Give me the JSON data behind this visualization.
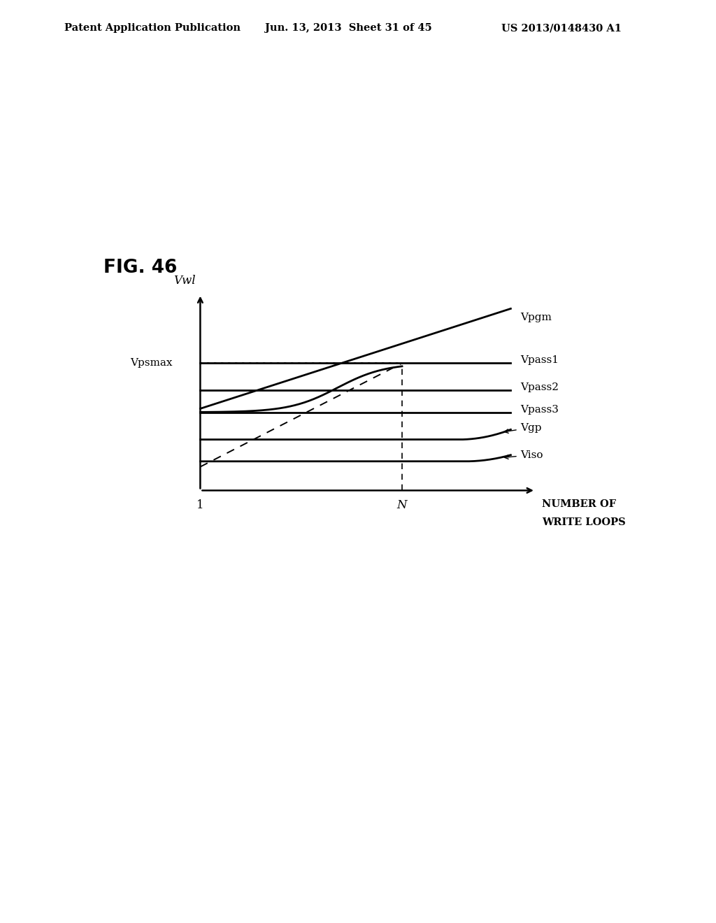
{
  "fig_label": "FIG. 46",
  "header_left": "Patent Application Publication",
  "header_mid": "Jun. 13, 2013  Sheet 31 of 45",
  "header_right": "US 2013/0148430 A1",
  "ylabel": "Vwl",
  "xlabel_line1": "NUMBER OF",
  "xlabel_line2": "WRITE LOOPS",
  "x_tick_1": "1",
  "x_tick_N": "N",
  "y_label_Vpsmax": "Vpsmax",
  "line_labels": {
    "Vpgm": "Vpgm",
    "Vpass1": "Vpass1",
    "Vpass2": "Vpass2",
    "Vpass3": "Vpass3",
    "Vgp": "Vgp",
    "Viso": "Viso"
  },
  "background_color": "#ffffff",
  "line_color": "#000000"
}
